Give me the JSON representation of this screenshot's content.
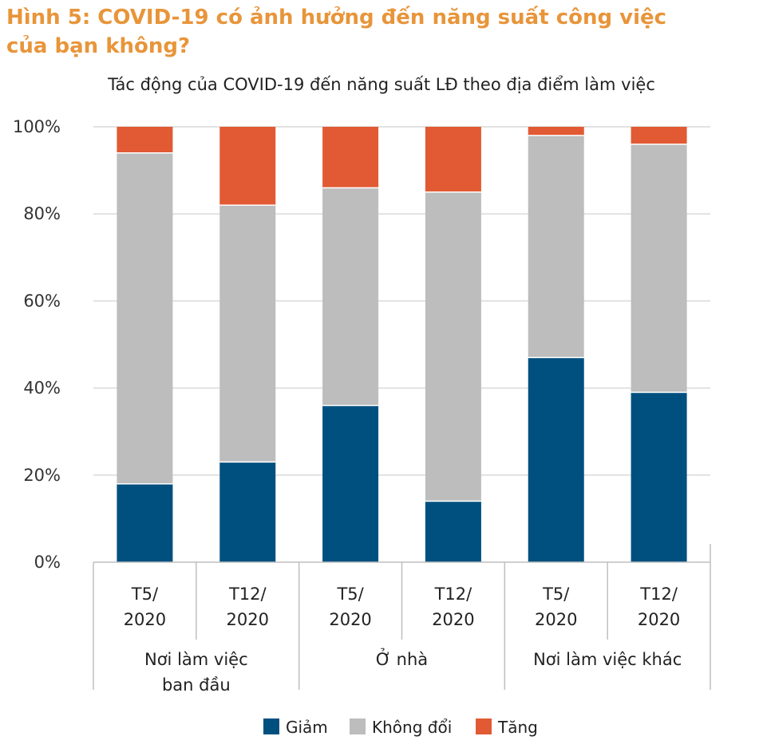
{
  "figure_title_line1": "Hình 5: COVID-19 có ảnh hưởng đến năng suất công việc",
  "figure_title_line2": "của bạn không?",
  "colors": {
    "title": "#E8953A",
    "giam": "#00507F",
    "khong_doi": "#BDBDBD",
    "tang": "#E15A34",
    "grid": "#D9D9D9",
    "axis": "#BFBFBF"
  },
  "chart_data": {
    "type": "bar",
    "stacked": true,
    "title": "Tác động của COVID-19 đến năng suất LĐ theo địa điểm làm việc",
    "ylim": [
      0,
      100
    ],
    "y_ticks": [
      "0%",
      "20%",
      "40%",
      "60%",
      "80%",
      "100%"
    ],
    "grid": true,
    "legend_position": "bottom",
    "categories": [
      {
        "label": [
          "T5/",
          "2020"
        ],
        "group": 0
      },
      {
        "label": [
          "T12/",
          "2020"
        ],
        "group": 0
      },
      {
        "label": [
          "T5/",
          "2020"
        ],
        "group": 1
      },
      {
        "label": [
          "T12/",
          "2020"
        ],
        "group": 1
      },
      {
        "label": [
          "T5/",
          "2020"
        ],
        "group": 2
      },
      {
        "label": [
          "T12/",
          "2020"
        ],
        "group": 2
      }
    ],
    "groups": [
      {
        "label": [
          "Nơi làm việc",
          "ban đầu"
        ]
      },
      {
        "label": [
          "Ở nhà"
        ]
      },
      {
        "label": [
          "Nơi làm việc khác"
        ]
      }
    ],
    "series": [
      {
        "name": "Giảm",
        "color": "#00507F",
        "values": [
          18,
          23,
          36,
          14,
          47,
          39
        ]
      },
      {
        "name": "Không đổi",
        "color": "#BDBDBD",
        "values": [
          76,
          59,
          50,
          71,
          51,
          57
        ]
      },
      {
        "name": "Tăng",
        "color": "#E15A34",
        "values": [
          6,
          18,
          14,
          15,
          2,
          4
        ]
      }
    ]
  }
}
